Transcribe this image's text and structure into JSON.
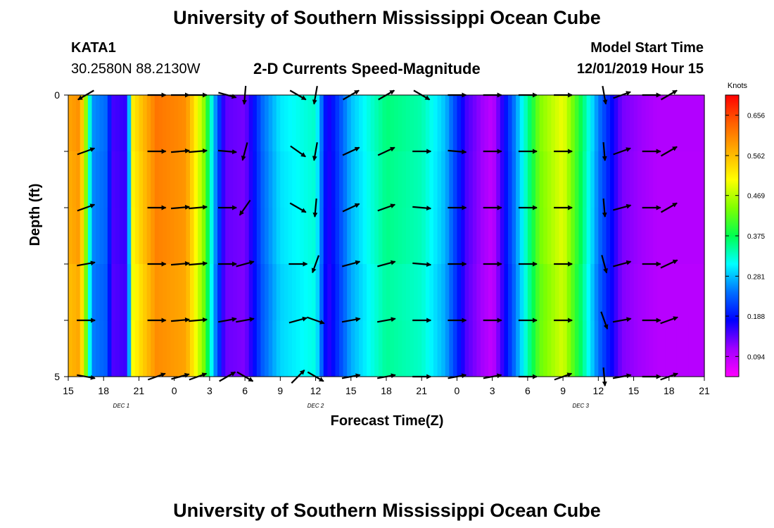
{
  "page": {
    "title": "University of Southern Mississippi Ocean Cube",
    "footer_title": "University of Southern Mississippi Ocean Cube",
    "station": "KATA1",
    "coordinates": "30.2580N 88.2130W",
    "subtitle": "2-D Currents Speed-Magnitude",
    "model_start_label": "Model Start Time",
    "model_start_value": "12/01/2019 Hour 15"
  },
  "chart_data": {
    "type": "heatmap",
    "title": "2-D Currents Speed-Magnitude",
    "xlabel": "Forecast Time(Z)",
    "ylabel": "Depth (ft)",
    "x_tick_labels": [
      "15",
      "18",
      "21",
      "0",
      "3",
      "6",
      "9",
      "12",
      "15",
      "18",
      "21",
      "0",
      "3",
      "6",
      "9",
      "12",
      "15",
      "18",
      "21"
    ],
    "day_labels": [
      {
        "label": "DEC 1",
        "at_tick": 1.5
      },
      {
        "label": "DEC 2",
        "at_tick": 7
      },
      {
        "label": "DEC 3",
        "at_tick": 14.5
      }
    ],
    "y_tick_labels": [
      "0",
      "5"
    ],
    "ylim": [
      0,
      5
    ],
    "colorbar": {
      "unit": "Knots",
      "ticks": [
        0.094,
        0.188,
        0.281,
        0.375,
        0.469,
        0.562,
        0.656
      ],
      "range": [
        0.047,
        0.703
      ],
      "colors": [
        "#ff00ff",
        "#a000ff",
        "#0000ff",
        "#0070ff",
        "#00ffff",
        "#00ff50",
        "#80ff00",
        "#ffff00",
        "#ffb000",
        "#ff6000",
        "#ff0000"
      ]
    },
    "time_hours_start": 0,
    "time_hours_end": 54,
    "speed_profile": [
      {
        "t": 0,
        "v": 0.58
      },
      {
        "t": 1.0,
        "v": 0.6
      },
      {
        "t": 1.5,
        "v": 0.45
      },
      {
        "t": 2.0,
        "v": 0.26
      },
      {
        "t": 3.2,
        "v": 0.24
      },
      {
        "t": 3.8,
        "v": 0.15
      },
      {
        "t": 5.0,
        "v": 0.16
      },
      {
        "t": 5.5,
        "v": 0.52
      },
      {
        "t": 7.5,
        "v": 0.62
      },
      {
        "t": 10.0,
        "v": 0.6
      },
      {
        "t": 11.5,
        "v": 0.45
      },
      {
        "t": 12.5,
        "v": 0.26
      },
      {
        "t": 13.3,
        "v": 0.14
      },
      {
        "t": 15.0,
        "v": 0.13
      },
      {
        "t": 16.5,
        "v": 0.24
      },
      {
        "t": 18.0,
        "v": 0.3
      },
      {
        "t": 21.0,
        "v": 0.33
      },
      {
        "t": 22.0,
        "v": 0.16
      },
      {
        "t": 24.0,
        "v": 0.28
      },
      {
        "t": 27.0,
        "v": 0.36
      },
      {
        "t": 30.0,
        "v": 0.34
      },
      {
        "t": 32.0,
        "v": 0.28
      },
      {
        "t": 33.8,
        "v": 0.15
      },
      {
        "t": 36.0,
        "v": 0.09
      },
      {
        "t": 38.0,
        "v": 0.26
      },
      {
        "t": 40.0,
        "v": 0.44
      },
      {
        "t": 42.0,
        "v": 0.5
      },
      {
        "t": 43.5,
        "v": 0.38
      },
      {
        "t": 45.0,
        "v": 0.25
      },
      {
        "t": 47.0,
        "v": 0.13
      },
      {
        "t": 50.0,
        "v": 0.1
      },
      {
        "t": 54.0,
        "v": 0.1
      }
    ],
    "arrow_depths": [
      0,
      1,
      2,
      3,
      4,
      5
    ],
    "arrow_columns": [
      {
        "t": 1.5,
        "dirs_deg": [
          210,
          20,
          20,
          10,
          0,
          350
        ]
      },
      {
        "t": 7.5,
        "dirs_deg": [
          0,
          0,
          0,
          0,
          0,
          20
        ]
      },
      {
        "t": 9.5,
        "dirs_deg": [
          0,
          5,
          5,
          5,
          5,
          15
        ]
      },
      {
        "t": 11.0,
        "dirs_deg": [
          0,
          5,
          5,
          5,
          5,
          20
        ]
      },
      {
        "t": 13.5,
        "dirs_deg": [
          345,
          355,
          0,
          0,
          10,
          30
        ]
      },
      {
        "t": 15.0,
        "dirs_deg": [
          265,
          255,
          235,
          15,
          10,
          330
        ]
      },
      {
        "t": 19.5,
        "dirs_deg": [
          330,
          325,
          330,
          0,
          15,
          45
        ]
      },
      {
        "t": 21.0,
        "dirs_deg": [
          260,
          260,
          265,
          250,
          340,
          330
        ]
      },
      {
        "t": 24.0,
        "dirs_deg": [
          30,
          25,
          25,
          15,
          10,
          10
        ]
      },
      {
        "t": 27.0,
        "dirs_deg": [
          30,
          25,
          20,
          15,
          10,
          10
        ]
      },
      {
        "t": 30.0,
        "dirs_deg": [
          330,
          0,
          355,
          355,
          0,
          0
        ]
      },
      {
        "t": 33.0,
        "dirs_deg": [
          0,
          355,
          0,
          0,
          0,
          10
        ]
      },
      {
        "t": 36.0,
        "dirs_deg": [
          0,
          0,
          0,
          0,
          0,
          10
        ]
      },
      {
        "t": 39.0,
        "dirs_deg": [
          0,
          0,
          0,
          0,
          0,
          0
        ]
      },
      {
        "t": 42.0,
        "dirs_deg": [
          0,
          0,
          0,
          0,
          0,
          20
        ]
      },
      {
        "t": 45.5,
        "dirs_deg": [
          280,
          275,
          275,
          285,
          290,
          275
        ]
      },
      {
        "t": 47.0,
        "dirs_deg": [
          20,
          20,
          15,
          15,
          10,
          10
        ]
      },
      {
        "t": 49.5,
        "dirs_deg": [
          0,
          0,
          0,
          0,
          0,
          0
        ]
      },
      {
        "t": 51.0,
        "dirs_deg": [
          30,
          30,
          30,
          25,
          20,
          20
        ]
      }
    ]
  }
}
